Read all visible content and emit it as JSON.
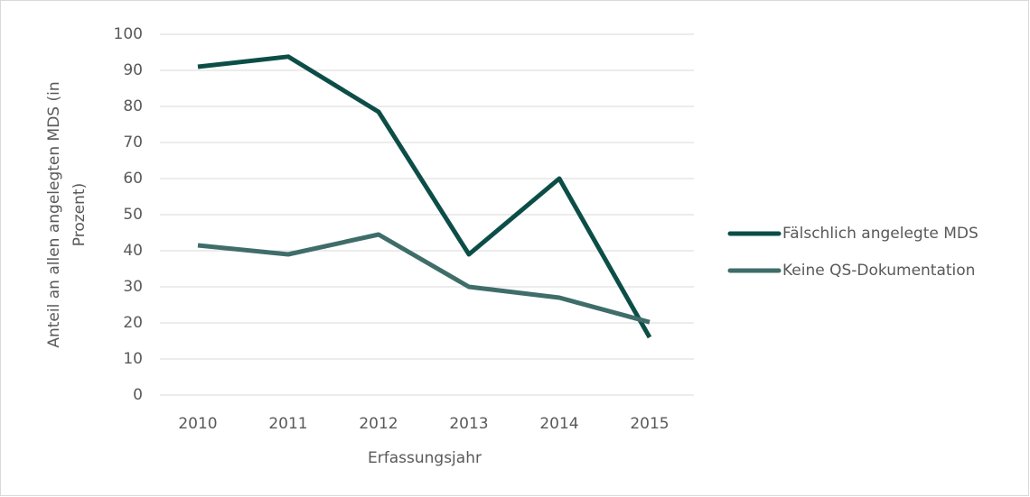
{
  "chart_data": {
    "type": "line",
    "categories": [
      "2010",
      "2011",
      "2012",
      "2013",
      "2014",
      "2015"
    ],
    "series": [
      {
        "name": "Fälschlich angelegte MDS",
        "color": "#0c4e47",
        "values": [
          91,
          93.8,
          78.5,
          39,
          60,
          16
        ]
      },
      {
        "name": "Keine QS-Dokumentation",
        "color": "#3f6d69",
        "values": [
          41.5,
          39,
          44.5,
          30,
          27,
          20.2
        ]
      }
    ],
    "ylim": [
      0,
      100
    ],
    "yticks": [
      0,
      10,
      20,
      30,
      40,
      50,
      60,
      70,
      80,
      90,
      100
    ],
    "x_label": "Erfassungsjahr",
    "y_label": [
      "Anteil an allen angelegten MDS (in",
      "Prozent)"
    ],
    "grid": true,
    "legend": "right"
  }
}
